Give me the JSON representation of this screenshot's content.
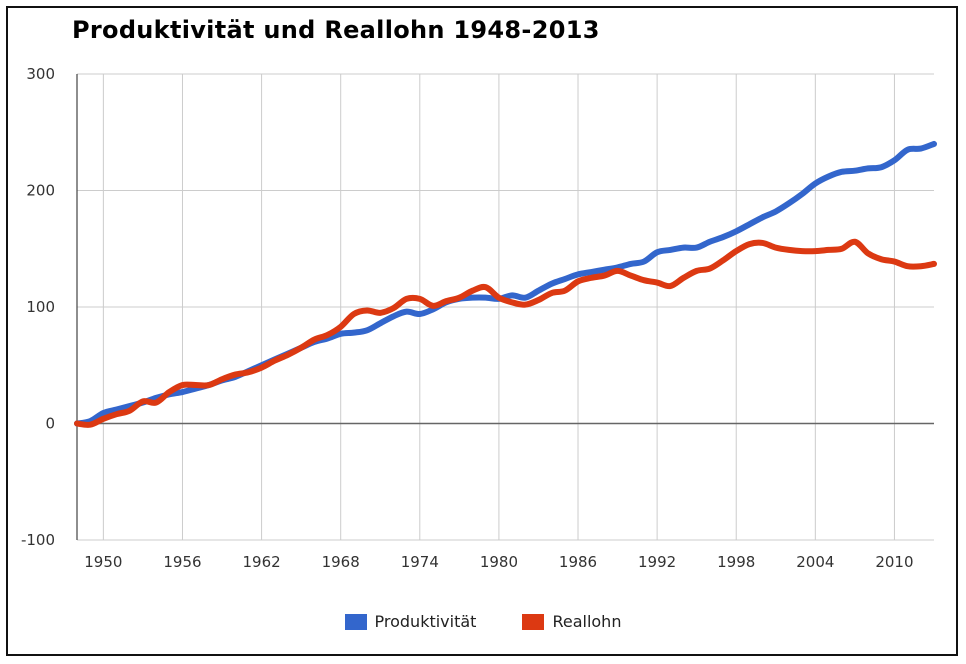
{
  "chart_data": {
    "type": "line",
    "title": "Produktivität und Reallohn 1948-2013",
    "xlabel": "",
    "ylabel": "",
    "xlim": [
      1948,
      2013
    ],
    "ylim": [
      -100,
      300
    ],
    "y_ticks": [
      300,
      200,
      100,
      0,
      -100
    ],
    "x_ticks": [
      1950,
      1956,
      1962,
      1968,
      1974,
      1980,
      1986,
      1992,
      1998,
      2004,
      2010
    ],
    "grid": true,
    "legend_position": "bottom",
    "x": [
      1948,
      1949,
      1950,
      1951,
      1952,
      1953,
      1954,
      1955,
      1956,
      1957,
      1958,
      1959,
      1960,
      1961,
      1962,
      1963,
      1964,
      1965,
      1966,
      1967,
      1968,
      1969,
      1970,
      1971,
      1972,
      1973,
      1974,
      1975,
      1976,
      1977,
      1978,
      1979,
      1980,
      1981,
      1982,
      1983,
      1984,
      1985,
      1986,
      1987,
      1988,
      1989,
      1990,
      1991,
      1992,
      1993,
      1994,
      1995,
      1996,
      1997,
      1998,
      1999,
      2000,
      2001,
      2002,
      2003,
      2004,
      2005,
      2006,
      2007,
      2008,
      2009,
      2010,
      2011,
      2012,
      2013
    ],
    "series": [
      {
        "name": "Produktivität",
        "color": "#3366cc",
        "values": [
          0,
          2,
          9,
          12,
          15,
          18,
          22,
          25,
          27,
          30,
          33,
          37,
          40,
          45,
          50,
          55,
          60,
          65,
          70,
          73,
          77,
          78,
          80,
          86,
          92,
          96,
          94,
          98,
          104,
          107,
          108,
          108,
          107,
          110,
          108,
          114,
          120,
          124,
          128,
          130,
          132,
          134,
          137,
          139,
          147,
          149,
          151,
          151,
          156,
          160,
          165,
          171,
          177,
          182,
          189,
          197,
          206,
          212,
          216,
          217,
          219,
          220,
          226,
          235,
          236,
          240
        ],
        "label_color": "#3366cc"
      },
      {
        "name": "Reallohn",
        "color": "#dc3912",
        "values": [
          0,
          -1,
          4,
          8,
          11,
          19,
          18,
          27,
          33,
          33,
          33,
          38,
          42,
          44,
          48,
          54,
          59,
          65,
          72,
          76,
          83,
          94,
          97,
          95,
          99,
          107,
          107,
          101,
          105,
          108,
          114,
          117,
          108,
          104,
          102,
          106,
          112,
          114,
          122,
          125,
          127,
          131,
          127,
          123,
          121,
          118,
          125,
          131,
          133,
          140,
          148,
          154,
          155,
          151,
          149,
          148,
          148,
          149,
          150,
          156,
          146,
          141,
          139,
          135,
          135,
          137
        ]
      }
    ]
  }
}
